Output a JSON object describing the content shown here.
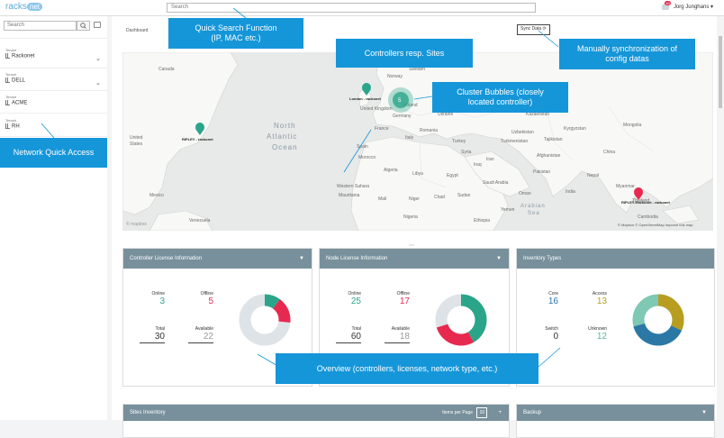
{
  "header": {
    "logo_a": "racks",
    "logo_b": "net",
    "search_placeholder": "Search",
    "notification_count": "10",
    "user": "Jorg Junghans ▾"
  },
  "sidebar": {
    "search_placeholder": "Search",
    "tenant_label": "Tenant",
    "tenants": [
      "Rackonet",
      "DELL",
      "ACME",
      "RH"
    ]
  },
  "main": {
    "breadcrumb": "Dashboard",
    "sync_label": "Sync Data"
  },
  "map": {
    "labels": {
      "ocean1": "North",
      "ocean2": "Atlantic",
      "ocean3": "Ocean",
      "arabian": "Arabian",
      "sea": "Sea",
      "attribution": "© Mapbox © OpenStreetMap Improve this map",
      "mapbox": "© mapbox"
    },
    "countries": [
      "United Kingdom",
      "France",
      "Spain",
      "Germany",
      "Poland",
      "Belarus",
      "Ukraine",
      "Romania",
      "Turkey",
      "Kazakhstan",
      "Uzbekistan",
      "Turkmenistan",
      "Afghanistan",
      "Pakistan",
      "India",
      "China",
      "Mongolia",
      "Iran",
      "Iraq",
      "Syria",
      "Saudi Arabia",
      "Oman",
      "Yemen",
      "Egypt",
      "Libya",
      "Algeria",
      "Morocco",
      "Mali",
      "Niger",
      "Chad",
      "Sudan",
      "Mauritania",
      "Nigeria",
      "Ethiopia",
      "Myanmar",
      "Thailand",
      "Cambodia",
      "Sweden",
      "Norway",
      "Finland",
      "Italy",
      "Canada",
      "United States",
      "Mexico",
      "Venezuela",
      "Tajikistan",
      "Kyrgyzstan",
      "Nepal",
      "Western Sahara"
    ],
    "markers": [
      {
        "label": "London - rackonet"
      },
      {
        "label": "RIPLEY - rackonet"
      },
      {
        "label": "RIPLEY-Rackonet\n- rackonet"
      }
    ],
    "cluster_count": "5"
  },
  "cards": {
    "controller": {
      "title": "Controller License Information",
      "online_label": "Online",
      "online": "3",
      "offline_label": "Offline",
      "offline": "5",
      "total_label": "Total",
      "total": "30",
      "available_label": "Available",
      "available": "22"
    },
    "node": {
      "title": "Node License Information",
      "online_label": "Online",
      "online": "25",
      "offline_label": "Offline",
      "offline": "17",
      "total_label": "Total",
      "total": "60",
      "available_label": "Available",
      "available": "18"
    },
    "inventory": {
      "title": "Inventory Types",
      "core_label": "Core",
      "core": "16",
      "access_label": "Access",
      "access": "13",
      "switch_label": "Switch",
      "switch": "0",
      "unknown_label": "Unknown",
      "unknown": "12"
    },
    "sites": {
      "title": "Sites Inventory",
      "items_per_page": "Items per Page",
      "page_size": "10"
    },
    "backup": {
      "title": "Backup"
    }
  },
  "callouts": {
    "quick_search": "Quick Search Function\n(IP, MAC etc.)",
    "controllers": "Controllers resp. Sites",
    "manual_sync": "Manually synchronization of\nconfig datas",
    "cluster": "Cluster Bubbles (closely\nlocated controller)",
    "network_access": "Network Quick Access",
    "overview": "Overview (controllers, licenses, network type, etc.)"
  },
  "colors": {
    "teal": "#2aa58a",
    "red": "#e8294f",
    "grey": "#dde3e6",
    "olive": "#b89d20",
    "blue": "#2b78a6",
    "mint": "#7fc8b3",
    "callout": "#1596d9",
    "card_header": "#78909c"
  }
}
